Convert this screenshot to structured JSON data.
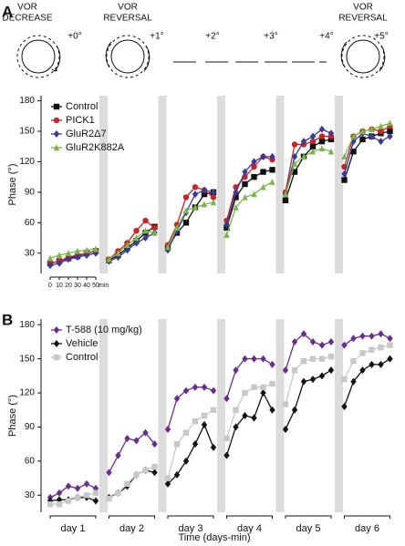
{
  "schematic": {
    "stages": [
      {
        "title": [
          "VOR",
          "DECREASE"
        ],
        "shift": "+0°"
      },
      {
        "title": [
          "VOR",
          "REVERSAL"
        ],
        "shift": "+1°"
      },
      {
        "shift": "+2°"
      },
      {
        "shift": "+3°"
      },
      {
        "shift": "+4°"
      },
      {
        "title": [
          "VOR",
          "REVERSAL"
        ],
        "shift": "+5°"
      }
    ]
  },
  "chart_data": [
    {
      "type": "line",
      "panel_label": "A",
      "y_label": "Phase (°)",
      "x": [
        0,
        10,
        20,
        30,
        40,
        50
      ],
      "xticks": [
        0,
        10,
        20,
        30,
        40,
        50
      ],
      "x_unit": "min",
      "ylim": [
        10,
        185
      ],
      "yticks": [
        30,
        60,
        90,
        120,
        150,
        180
      ],
      "legend": "top-left",
      "series": [
        {
          "name": "Control",
          "color": "#111111",
          "marker": "square",
          "values": [
            [
              20,
              22,
              25,
              27,
              30,
              32
            ],
            [
              23,
              28,
              35,
              42,
              50,
              56
            ],
            [
              35,
              50,
              60,
              75,
              88,
              90
            ],
            [
              55,
              85,
              98,
              105,
              110,
              112
            ],
            [
              82,
              110,
              125,
              135,
              140,
              142
            ],
            [
              102,
              130,
              142,
              145,
              148,
              150
            ]
          ]
        },
        {
          "name": "PICK1",
          "color": "#cc2222",
          "marker": "circle",
          "values": [
            [
              20,
              22,
              26,
              28,
              30,
              32
            ],
            [
              24,
              32,
              40,
              52,
              62,
              55
            ],
            [
              38,
              58,
              85,
              95,
              92,
              85
            ],
            [
              62,
              95,
              105,
              115,
              125,
              122
            ],
            [
              90,
              137,
              137,
              140,
              145,
              145
            ],
            [
              115,
              145,
              150,
              152,
              150,
              155
            ]
          ]
        },
        {
          "name": "GluR2Δ7",
          "color": "#3a3a9a",
          "marker": "diamond",
          "values": [
            [
              18,
              20,
              24,
              26,
              28,
              30
            ],
            [
              22,
              26,
              33,
              40,
              45,
              50
            ],
            [
              33,
              52,
              70,
              88,
              92,
              90
            ],
            [
              58,
              90,
              110,
              120,
              125,
              125
            ],
            [
              88,
              125,
              140,
              145,
              152,
              148
            ],
            [
              108,
              140,
              148,
              145,
              140,
              145
            ]
          ]
        },
        {
          "name": "GluR2K882A",
          "color": "#7ab648",
          "marker": "triangle",
          "values": [
            [
              25,
              28,
              30,
              32,
              33,
              34
            ],
            [
              24,
              30,
              38,
              45,
              52,
              50
            ],
            [
              36,
              55,
              72,
              75,
              78,
              80
            ],
            [
              48,
              75,
              85,
              88,
              95,
              100
            ],
            [
              88,
              118,
              125,
              130,
              133,
              130
            ],
            [
              125,
              145,
              150,
              152,
              155,
              158
            ]
          ]
        }
      ]
    },
    {
      "type": "line",
      "panel_label": "B",
      "y_label": "Phase (°)",
      "x_label": "Time (days-min)",
      "x": [
        0,
        10,
        20,
        30,
        40,
        50
      ],
      "categories": [
        "day 1",
        "day 2",
        "day 3",
        "day 4",
        "day 5",
        "day 6"
      ],
      "ylim": [
        15,
        185
      ],
      "yticks": [
        30,
        60,
        90,
        120,
        150,
        180
      ],
      "legend": "top-left",
      "series": [
        {
          "name": "T-588 (10 mg/kg)",
          "color": "#6a2c91",
          "marker": "diamond",
          "values": [
            [
              28,
              32,
              38,
              36,
              40,
              36
            ],
            [
              50,
              65,
              80,
              78,
              85,
              75
            ],
            [
              88,
              115,
              122,
              125,
              125,
              122
            ],
            [
              115,
              140,
              150,
              150,
              150,
              145
            ],
            [
              140,
              165,
              172,
              165,
              162,
              165
            ],
            [
              162,
              168,
              170,
              170,
              172,
              168
            ]
          ]
        },
        {
          "name": "Vehicle",
          "color": "#111111",
          "marker": "diamond",
          "values": [
            [
              25,
              26,
              26,
              28,
              28,
              25
            ],
            [
              28,
              32,
              38,
              48,
              52,
              50
            ],
            [
              40,
              48,
              60,
              75,
              92,
              72
            ],
            [
              65,
              90,
              100,
              98,
              120,
              105
            ],
            [
              88,
              105,
              130,
              132,
              135,
              140
            ],
            [
              108,
              130,
              140,
              145,
              145,
              150
            ]
          ]
        },
        {
          "name": "Control",
          "color": "#c8c8c8",
          "marker": "square",
          "values": [
            [
              22,
              22,
              25,
              28,
              30,
              32
            ],
            [
              27,
              32,
              40,
              48,
              52,
              55
            ],
            [
              45,
              75,
              85,
              95,
              100,
              105
            ],
            [
              80,
              105,
              120,
              125,
              125,
              128
            ],
            [
              110,
              140,
              148,
              150,
              150,
              152
            ],
            [
              132,
              148,
              155,
              158,
              160,
              162
            ]
          ]
        }
      ]
    }
  ]
}
